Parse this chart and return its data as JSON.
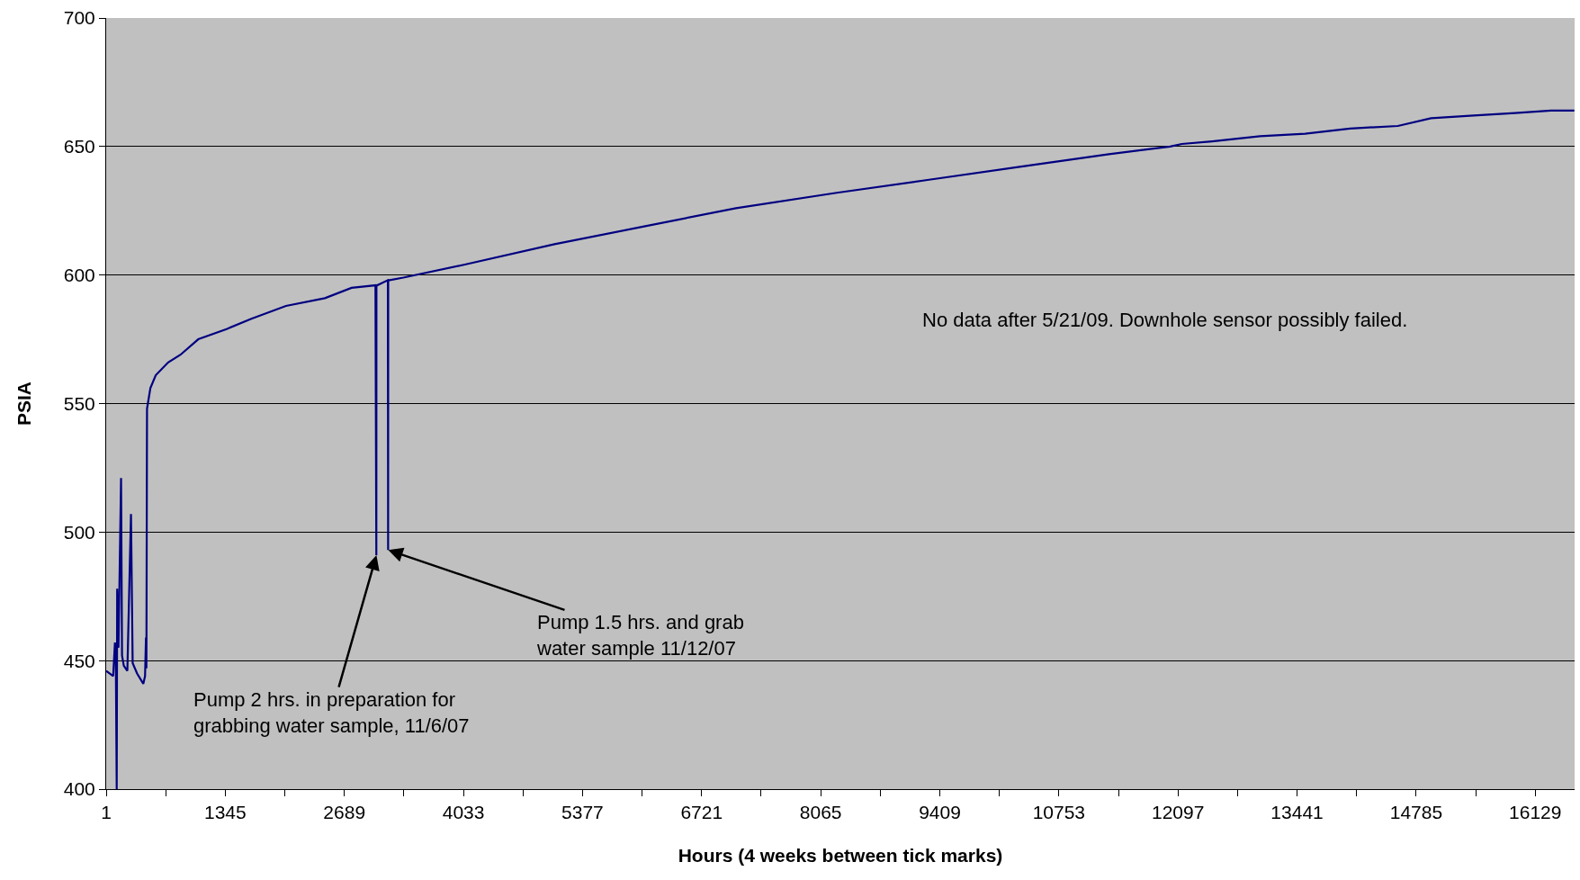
{
  "chart_data": {
    "type": "line",
    "xlabel": "Hours (4 weeks between tick marks)",
    "ylabel": "PSIA",
    "series": [
      {
        "color": "#000080",
        "x": [
          1,
          80,
          100,
          110,
          120,
          125,
          140,
          169,
          180,
          200,
          240,
          281,
          300,
          350,
          420,
          440,
          450,
          455,
          462,
          500,
          560,
          700,
          840,
          1040,
          1360,
          1640,
          2030,
          2470,
          2770,
          3040,
          3050,
          3051,
          3060,
          3180,
          3183,
          3184,
          3200,
          3355,
          4038,
          5061,
          6085,
          7109,
          8246,
          9270,
          10293,
          11317,
          12008,
          12140,
          12482,
          13023,
          13531,
          14039,
          14578,
          14953,
          15393,
          15901,
          16306,
          16570
        ],
        "values": [
          446,
          444,
          457,
          450,
          400,
          478,
          455,
          521,
          452,
          448,
          446,
          507,
          449,
          445,
          441,
          444,
          459,
          447,
          548,
          556,
          561,
          566,
          569,
          575,
          579,
          583,
          588,
          591,
          595,
          596,
          491,
          596,
          596,
          598,
          493,
          598,
          598,
          599,
          604,
          612,
          619,
          626,
          632,
          637,
          642,
          647,
          650,
          651,
          652,
          654,
          655,
          657,
          658,
          661,
          662,
          663,
          664,
          664
        ]
      }
    ],
    "xlim": [
      1,
      16573
    ],
    "xticks": [
      1,
      {
        "value": 673,
        "label": null
      },
      1345,
      {
        "value": 2017,
        "label": null
      },
      2689,
      {
        "value": 3361,
        "label": null
      },
      4033,
      {
        "value": 4705,
        "label": null
      },
      5377,
      {
        "value": 6049,
        "label": null
      },
      6721,
      {
        "value": 7393,
        "label": null
      },
      8065,
      {
        "value": 8737,
        "label": null
      },
      9409,
      {
        "value": 10081,
        "label": null
      },
      10753,
      {
        "value": 11425,
        "label": null
      },
      12097,
      {
        "value": 12769,
        "label": null
      },
      13441,
      {
        "value": 14113,
        "label": null
      },
      14785,
      {
        "value": 15457,
        "label": null
      },
      16129
    ],
    "ylim": [
      400,
      700
    ],
    "yticks": [
      400,
      450,
      500,
      550,
      600,
      650,
      700
    ],
    "grid": "y",
    "annotations": [
      {
        "text": "Pump 2 hrs. in preparation for\ngrabbing water sample, 11/6/07",
        "x": 3051,
        "y": 491
      },
      {
        "text": "Pump 1.5 hrs. and grab\nwater sample 11/12/07",
        "x": 3184,
        "y": 493
      },
      "No data after 5/21/09. Downhole sensor possibly failed."
    ]
  }
}
